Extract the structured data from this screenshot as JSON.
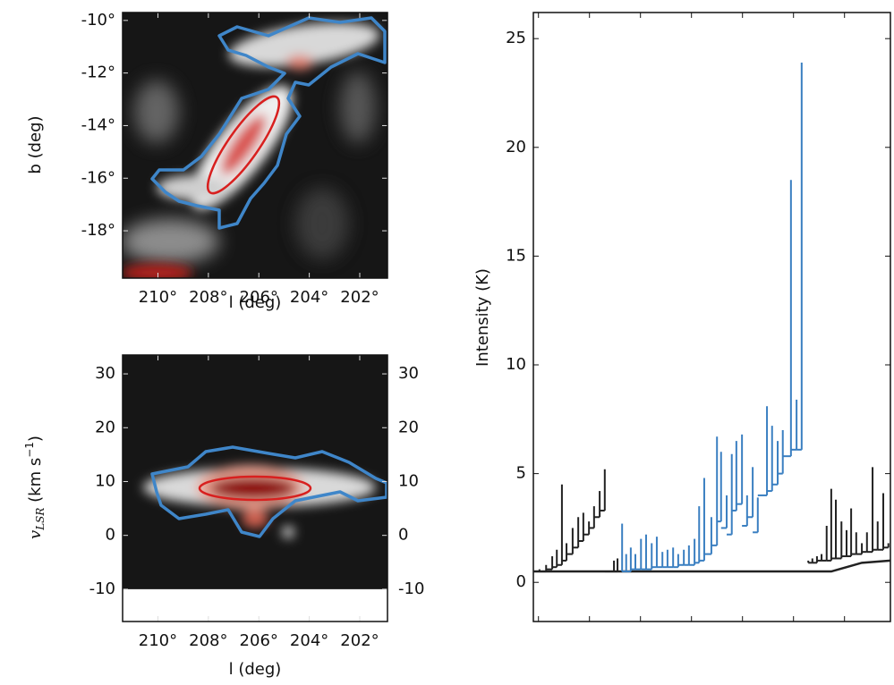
{
  "chart_data": [
    {
      "type": "image",
      "xlabel": "l (deg)",
      "ylabel": "b (deg)",
      "xlim": [
        211.4,
        200.9
      ],
      "xticks": [
        {
          "value": 210,
          "label": "210°"
        },
        {
          "value": 208,
          "label": "208°"
        },
        {
          "value": 206,
          "label": "206°"
        },
        {
          "value": 204,
          "label": "204°"
        },
        {
          "value": 202,
          "label": "202°"
        }
      ],
      "ylim": [
        -19.8,
        -9.7
      ],
      "yticks": [
        {
          "value": -10,
          "label": "-10°"
        },
        {
          "value": -12,
          "label": "-12°"
        },
        {
          "value": -14,
          "label": "-14°"
        },
        {
          "value": -16,
          "label": "-16°"
        },
        {
          "value": -18,
          "label": "-18°"
        }
      ]
    },
    {
      "type": "image",
      "xlabel": "l (deg)",
      "ylabel": "v",
      "ylabel_sub": "LSR",
      "ylabel_unit": " (km s",
      "ylabel_sup": "−1",
      "ylabel_end": ")",
      "xlim": [
        211.4,
        200.9
      ],
      "xticks": [
        {
          "value": 210,
          "label": "210°"
        },
        {
          "value": 208,
          "label": "208°"
        },
        {
          "value": 206,
          "label": "206°"
        },
        {
          "value": 204,
          "label": "204°"
        },
        {
          "value": 202,
          "label": "202°"
        }
      ],
      "ylim": [
        -16,
        33.5
      ],
      "yticks": [
        30,
        20,
        10,
        0,
        -10
      ],
      "y2lim": [
        -16,
        33.5
      ],
      "y2ticks": [
        30,
        20,
        10,
        0,
        -10
      ],
      "map_vmin": -10
    },
    {
      "type": "dendrogram",
      "ylabel": "Intensity (K)",
      "xlim": [
        -1,
        69
      ],
      "xticks": [
        0,
        10,
        20,
        30,
        40,
        50,
        60
      ],
      "xtick_labels": false,
      "ylim": [
        -1.8,
        26.2
      ],
      "yticks": [
        0,
        5,
        10,
        15,
        20,
        25
      ],
      "trunk": {
        "color": "#222222",
        "x": [
          -1,
          57.4,
          63.4,
          69
        ],
        "values": [
          0.5,
          0.5,
          0.9,
          1.0
        ]
      },
      "series": [
        {
          "color": "#222222",
          "x": [
            0.2,
            1.5,
            2.7,
            3.6,
            4.6,
            5.5,
            6.7,
            7.8,
            8.8,
            9.9,
            10.9,
            12.0,
            13.0,
            14.8,
            15.5
          ],
          "values": [
            0.6,
            0.8,
            1.2,
            1.5,
            4.5,
            1.8,
            2.5,
            3.0,
            3.2,
            2.8,
            3.5,
            4.2,
            5.2,
            1.0,
            1.1
          ],
          "base": [
            0.5,
            0.5,
            0.6,
            0.7,
            0.8,
            1.0,
            1.3,
            1.6,
            1.9,
            2.2,
            2.5,
            3.0,
            3.3,
            0.5,
            0.5
          ]
        },
        {
          "color": "#3a7fc1",
          "x": [
            16.4,
            17.2,
            18.1,
            19.0,
            20.1,
            21.1,
            22.2,
            23.2,
            24.3,
            25.3,
            26.4,
            27.4,
            28.5,
            29.5,
            30.6,
            31.5,
            32.5,
            33.9,
            35.0,
            35.8,
            36.9,
            37.9,
            38.8,
            39.9,
            40.9,
            42.0,
            43.0,
            44.8,
            45.8,
            46.9,
            47.9,
            49.5,
            50.6,
            51.6
          ],
          "values": [
            2.7,
            1.3,
            1.6,
            1.3,
            2.0,
            2.2,
            1.8,
            2.1,
            1.4,
            1.5,
            1.6,
            1.3,
            1.5,
            1.7,
            2.0,
            3.5,
            4.8,
            3.0,
            6.7,
            6.0,
            4.0,
            5.9,
            6.5,
            6.8,
            4.0,
            5.3,
            3.9,
            8.1,
            7.2,
            6.5,
            7.0,
            18.5,
            8.4,
            23.9
          ],
          "base": [
            0.5,
            0.5,
            0.5,
            0.6,
            0.6,
            0.6,
            0.6,
            0.7,
            0.7,
            0.7,
            0.7,
            0.7,
            0.8,
            0.8,
            0.8,
            0.9,
            1.0,
            1.3,
            1.7,
            2.8,
            2.5,
            2.2,
            3.3,
            3.6,
            2.6,
            3.0,
            2.3,
            4.0,
            4.2,
            4.5,
            5.0,
            5.8,
            6.1,
            6.1
          ]
        },
        {
          "color": "#222222",
          "x": [
            52.9,
            53.7,
            54.6,
            55.5,
            56.5,
            57.4,
            58.3,
            59.4,
            60.4,
            61.3,
            62.3,
            63.4,
            64.4,
            65.5,
            66.5,
            67.6,
            68.6
          ],
          "values": [
            1.0,
            1.1,
            1.2,
            1.3,
            2.6,
            4.3,
            3.8,
            2.8,
            2.4,
            3.4,
            2.3,
            1.8,
            2.3,
            5.3,
            2.8,
            4.1,
            1.8
          ],
          "base": [
            0.9,
            0.9,
            0.9,
            1.0,
            1.0,
            1.0,
            1.1,
            1.1,
            1.2,
            1.2,
            1.3,
            1.3,
            1.4,
            1.4,
            1.5,
            1.5,
            1.6
          ]
        }
      ]
    }
  ]
}
